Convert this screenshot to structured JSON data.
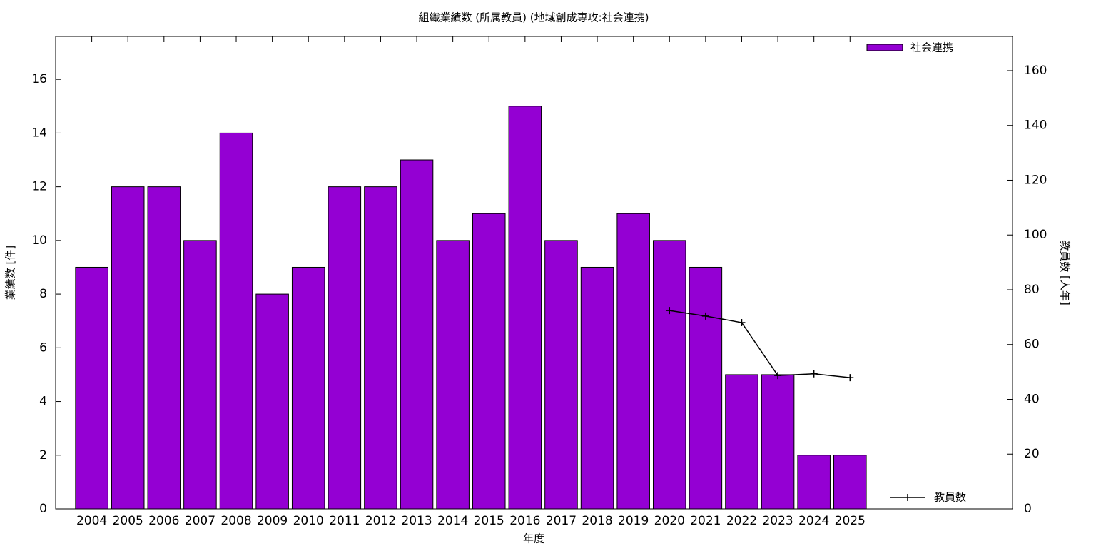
{
  "chart_data": {
    "type": "bar",
    "title": "組織業績数 (所属教員) (地域創成専攻:社会連携)",
    "x_label": "年度",
    "y_label": "業績数 [件]",
    "y2_label": "教員数 [人年]",
    "categories": [
      "2004",
      "2005",
      "2006",
      "2007",
      "2008",
      "2009",
      "2010",
      "2011",
      "2012",
      "2013",
      "2014",
      "2015",
      "2016",
      "2017",
      "2018",
      "2019",
      "2020",
      "2021",
      "2022",
      "2023",
      "2024",
      "2025"
    ],
    "xlim": [
      -1,
      25.5
    ],
    "series": [
      {
        "name": "社会連携",
        "type": "bar",
        "color": "#9400d3",
        "values": [
          9,
          12,
          12,
          10,
          14,
          8,
          9,
          12,
          12,
          13,
          10,
          11,
          15,
          10,
          9,
          11,
          10,
          9,
          5,
          5,
          2,
          2
        ]
      },
      {
        "name": "教員数",
        "type": "line",
        "axis": "y2",
        "color": "#000000",
        "values": [
          null,
          null,
          null,
          null,
          null,
          null,
          null,
          null,
          null,
          null,
          null,
          null,
          null,
          null,
          null,
          null,
          72.4,
          70.4,
          68.0,
          48.7,
          49.3,
          47.9
        ]
      }
    ],
    "ylim": [
      0,
      17.6
    ],
    "yticks": [
      0,
      2,
      4,
      6,
      8,
      10,
      12,
      14,
      16
    ],
    "y2lim": [
      0,
      172.5
    ],
    "y2ticks": [
      0,
      20,
      40,
      60,
      80,
      100,
      120,
      140,
      160
    ],
    "legend": "top-right"
  }
}
